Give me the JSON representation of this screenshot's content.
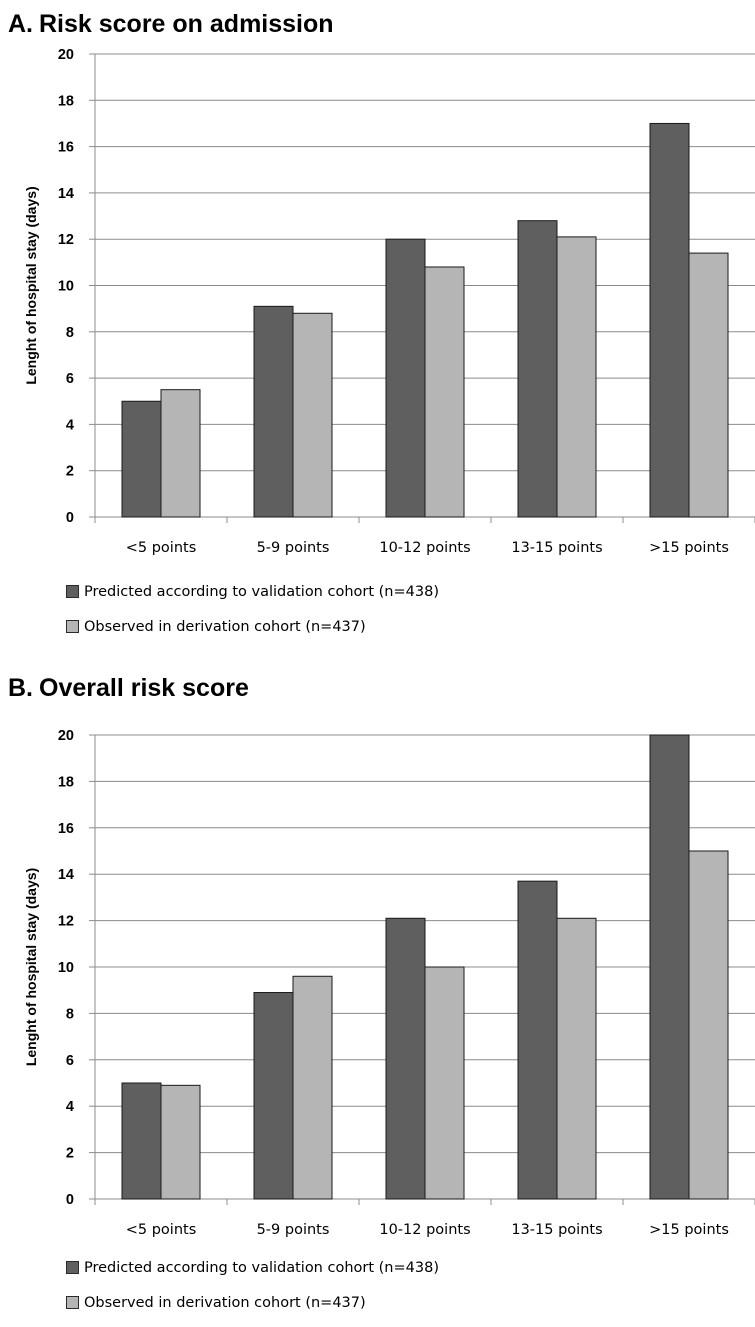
{
  "chart_data": [
    {
      "type": "bar",
      "panel_letter": "A.",
      "title": "Risk score on admission",
      "ylabel": "Lenght of hospital stay (days)",
      "xlabel": "",
      "ylim": [
        0,
        20
      ],
      "yticks": [
        "0",
        "2",
        "4",
        "6",
        "8",
        "10",
        "12",
        "14",
        "16",
        "18",
        "20"
      ],
      "grid": true,
      "legend_placement": "bottom-left",
      "categories": [
        "<5 points",
        "5-9 points",
        "10-12 points",
        "13-15 points",
        ">15 points"
      ],
      "series": [
        {
          "name": "Predicted according to validation cohort (n=438)",
          "color": "#5f5f5f",
          "values": [
            5.0,
            9.1,
            12.0,
            12.8,
            17.0
          ]
        },
        {
          "name": "Observed in derivation cohort (n=437)",
          "color": "#b5b5b5",
          "values": [
            5.5,
            8.8,
            10.8,
            12.1,
            11.4
          ]
        }
      ]
    },
    {
      "type": "bar",
      "panel_letter": "B.",
      "title": "Overall risk score",
      "ylabel": "Lenght of hospital stay (days)",
      "xlabel": "",
      "ylim": [
        0,
        20
      ],
      "yticks": [
        "0",
        "2",
        "4",
        "6",
        "8",
        "10",
        "12",
        "14",
        "16",
        "18",
        "20"
      ],
      "grid": true,
      "legend_placement": "bottom-left",
      "categories": [
        "<5 points",
        "5-9 points",
        "10-12 points",
        "13-15 points",
        ">15 points"
      ],
      "series": [
        {
          "name": "Predicted according to validation cohort (n=438)",
          "color": "#5f5f5f",
          "values": [
            5.0,
            8.9,
            12.1,
            13.7,
            20.0
          ]
        },
        {
          "name": "Observed in derivation cohort (n=437)",
          "color": "#b5b5b5",
          "values": [
            4.9,
            9.6,
            10.0,
            12.1,
            15.0
          ]
        }
      ]
    }
  ]
}
